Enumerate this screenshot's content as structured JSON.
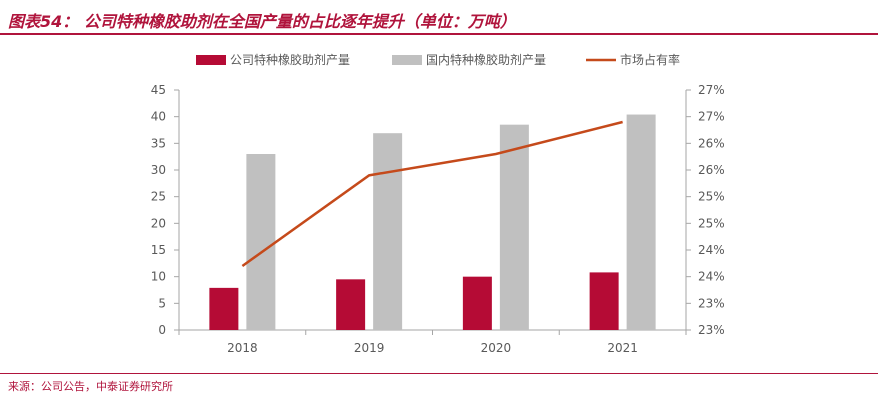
{
  "header": {
    "title": "图表54：  公司特种橡胶助剂在全国产量的占比逐年提升（单位：万吨）"
  },
  "footer": {
    "source": "来源：公司公告，中泰证券研究所"
  },
  "colors": {
    "accent": "#b0143c",
    "bar_company": "#b50b35",
    "bar_domestic": "#c0c0c0",
    "line_share": "#c54a1b"
  },
  "chart_data": {
    "type": "bar",
    "categories": [
      "2018",
      "2019",
      "2020",
      "2021"
    ],
    "series": [
      {
        "name": "公司特种橡胶助剂产量",
        "type": "bar",
        "axis": "left",
        "values": [
          7.9,
          9.5,
          10.0,
          10.8
        ]
      },
      {
        "name": "国内特种橡胶助剂产量",
        "type": "bar",
        "axis": "left",
        "values": [
          33.0,
          36.9,
          38.5,
          40.4
        ]
      },
      {
        "name": "市场占有率",
        "type": "line",
        "axis": "right",
        "values": [
          24.2,
          25.9,
          26.3,
          26.9
        ]
      }
    ],
    "left_axis": {
      "ylim": [
        0,
        45
      ],
      "ticks": [
        "0",
        "5",
        "10",
        "15",
        "20",
        "25",
        "30",
        "35",
        "40",
        "45"
      ]
    },
    "right_axis": {
      "ylim": [
        23.0,
        27.5
      ],
      "ticks": [
        "23%",
        "23%",
        "24%",
        "24%",
        "25%",
        "25%",
        "26%",
        "26%",
        "27%",
        "27%"
      ]
    },
    "legend_position": "top",
    "grid": false
  }
}
